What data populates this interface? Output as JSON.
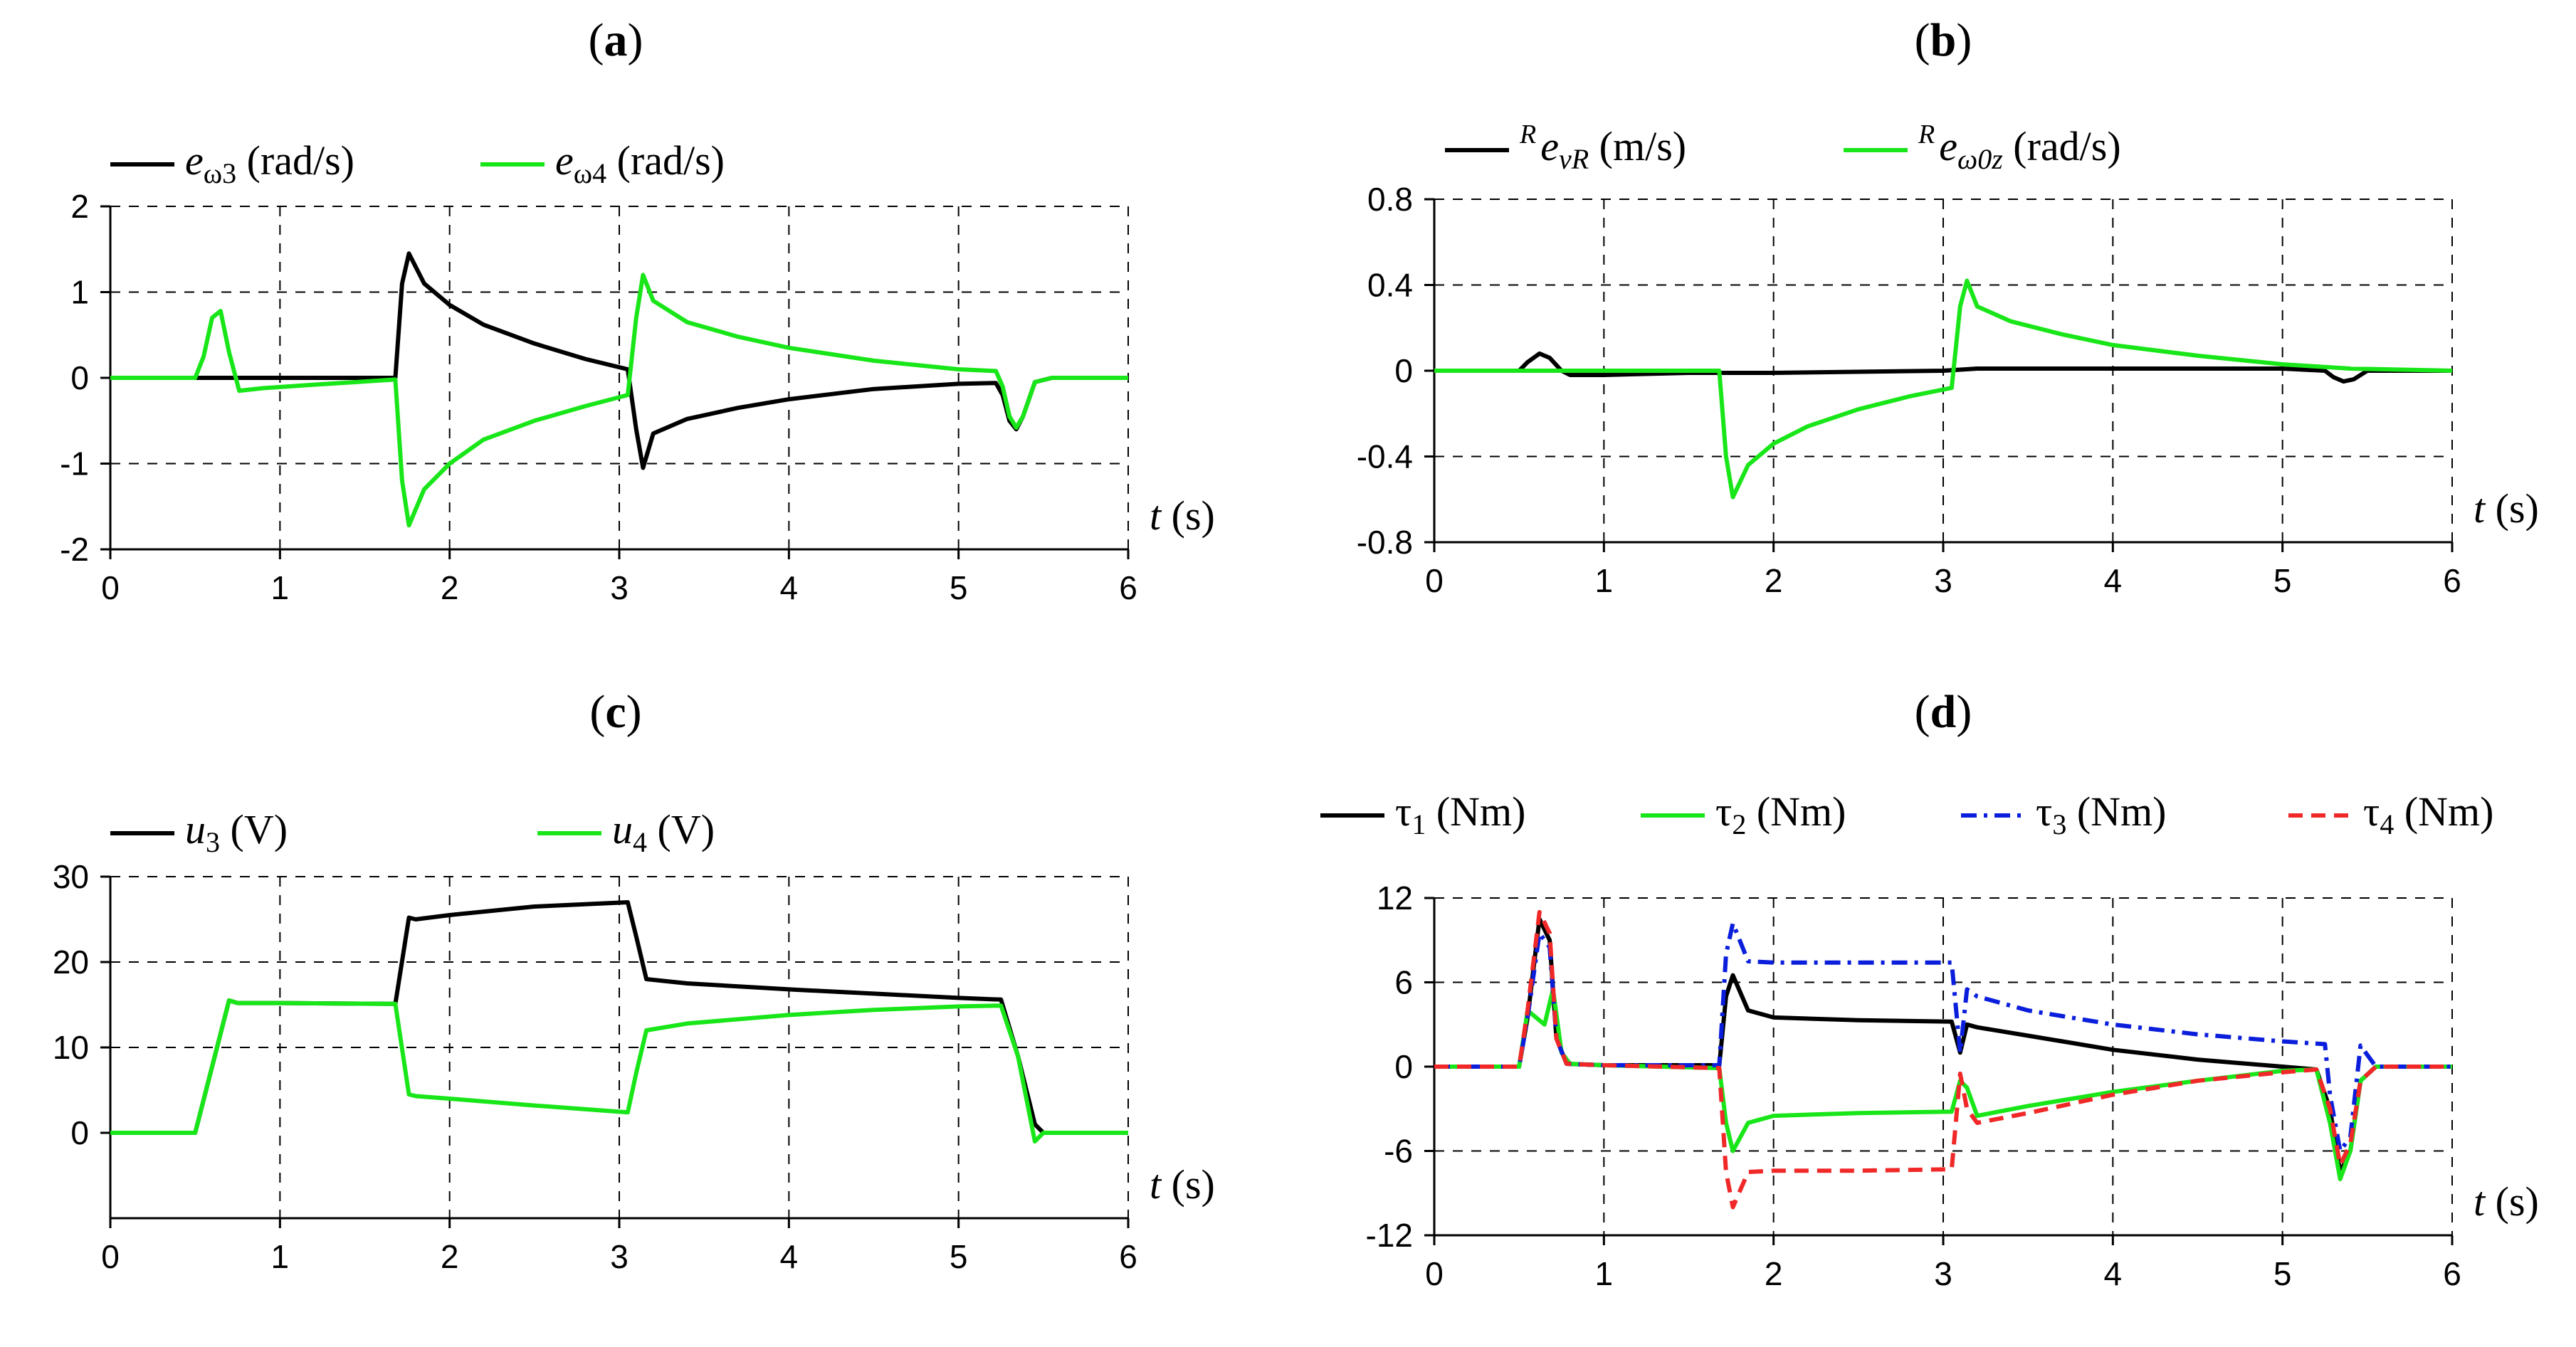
{
  "chart_data": [
    {
      "type": "line",
      "panel": "(a)",
      "title_letter": "a",
      "xlabel": "t",
      "xunit": "(s)",
      "xlim": [
        0,
        6
      ],
      "ylim": [
        -2,
        2
      ],
      "xticks": [
        0,
        1,
        2,
        3,
        4,
        5,
        6
      ],
      "yticks": [
        -2,
        -1,
        0,
        1,
        2
      ],
      "ytick_labels": [
        "-2",
        "-1",
        "0",
        "1",
        "2"
      ],
      "legend_position": "top",
      "series": [
        {
          "name": "e_ω3 (rad/s)",
          "sym": "e",
          "sub": "ω3",
          "sup": "",
          "unit": "(rad/s)",
          "color": "#000000",
          "dash": "solid",
          "x": [
            0,
            0.5,
            0.7,
            1.0,
            1.68,
            1.72,
            1.76,
            1.85,
            2.0,
            2.2,
            2.5,
            2.8,
            3.05,
            3.1,
            3.14,
            3.2,
            3.4,
            3.7,
            4.0,
            4.5,
            5.0,
            5.22,
            5.26,
            5.3,
            5.34,
            5.38,
            5.45,
            5.55,
            6.0
          ],
          "y": [
            0,
            0,
            0,
            0,
            0,
            1.1,
            1.45,
            1.1,
            0.85,
            0.62,
            0.4,
            0.22,
            0.1,
            -0.6,
            -1.05,
            -0.65,
            -0.48,
            -0.35,
            -0.25,
            -0.13,
            -0.07,
            -0.06,
            -0.2,
            -0.5,
            -0.6,
            -0.45,
            -0.05,
            0,
            0
          ]
        },
        {
          "name": "e_ω4 (rad/s)",
          "sym": "e",
          "sub": "ω4",
          "sup": "",
          "unit": "(rad/s)",
          "color": "#19e619",
          "dash": "solid",
          "x": [
            0,
            0.5,
            0.55,
            0.6,
            0.65,
            0.7,
            0.76,
            0.9,
            1.2,
            1.68,
            1.72,
            1.76,
            1.85,
            2.0,
            2.2,
            2.5,
            2.8,
            3.05,
            3.1,
            3.14,
            3.2,
            3.4,
            3.7,
            4.0,
            4.5,
            5.0,
            5.22,
            5.26,
            5.3,
            5.34,
            5.38,
            5.45,
            5.55,
            6.0
          ],
          "y": [
            0,
            0,
            0.25,
            0.7,
            0.78,
            0.3,
            -0.15,
            -0.12,
            -0.08,
            -0.02,
            -1.2,
            -1.72,
            -1.3,
            -1.0,
            -0.72,
            -0.5,
            -0.33,
            -0.2,
            0.7,
            1.2,
            0.9,
            0.65,
            0.48,
            0.35,
            0.2,
            0.1,
            0.08,
            -0.1,
            -0.45,
            -0.58,
            -0.45,
            -0.05,
            0,
            0
          ]
        }
      ]
    },
    {
      "type": "line",
      "panel": "(b)",
      "title_letter": "b",
      "xlabel": "t",
      "xunit": "(s)",
      "xlim": [
        0,
        6
      ],
      "ylim": [
        -0.8,
        0.8
      ],
      "xticks": [
        0,
        1,
        2,
        3,
        4,
        5,
        6
      ],
      "yticks": [
        -0.8,
        -0.4,
        0,
        0.4,
        0.8
      ],
      "ytick_labels": [
        "-0.8",
        "-0.4",
        "0",
        "0.4",
        "0.8"
      ],
      "legend_position": "top",
      "series": [
        {
          "name": "R e_vR (m/s)",
          "sym": "e",
          "sub": "vR",
          "sup": "R",
          "unit": "(m/s)",
          "color": "#000000",
          "dash": "solid",
          "x": [
            0,
            0.5,
            0.55,
            0.62,
            0.68,
            0.75,
            0.8,
            1.0,
            1.5,
            2.0,
            3.0,
            3.2,
            4.0,
            5.0,
            5.25,
            5.3,
            5.36,
            5.42,
            5.5,
            6.0
          ],
          "y": [
            0,
            0,
            0.04,
            0.08,
            0.06,
            0.0,
            -0.02,
            -0.02,
            -0.01,
            -0.01,
            0.0,
            0.01,
            0.01,
            0.01,
            0.0,
            -0.03,
            -0.05,
            -0.04,
            0.0,
            0.0
          ]
        },
        {
          "name": "R e_ω0z (rad/s)",
          "sym": "e",
          "sub": "ω0z",
          "sup": "R",
          "unit": "(rad/s)",
          "color": "#19e619",
          "dash": "solid",
          "x": [
            0,
            1.0,
            1.68,
            1.72,
            1.76,
            1.85,
            2.0,
            2.2,
            2.5,
            2.8,
            3.05,
            3.1,
            3.14,
            3.2,
            3.4,
            3.7,
            4.0,
            4.5,
            5.0,
            5.4,
            6.0
          ],
          "y": [
            0,
            0,
            0,
            -0.4,
            -0.59,
            -0.44,
            -0.34,
            -0.26,
            -0.18,
            -0.12,
            -0.08,
            0.3,
            0.42,
            0.3,
            0.23,
            0.17,
            0.12,
            0.07,
            0.03,
            0.01,
            0
          ]
        }
      ]
    },
    {
      "type": "line",
      "panel": "(c)",
      "title_letter": "c",
      "xlabel": "t",
      "xunit": "(s)",
      "xlim": [
        0,
        6
      ],
      "ylim": [
        -10,
        30
      ],
      "xticks": [
        0,
        1,
        2,
        3,
        4,
        5,
        6
      ],
      "yticks": [
        0,
        10,
        20,
        30
      ],
      "ytick_labels": [
        "0",
        "10",
        "20",
        "30"
      ],
      "legend_position": "top",
      "series": [
        {
          "name": "u3 (V)",
          "sym": "u",
          "sub": "3",
          "sup": "",
          "unit": "(V)",
          "color": "#000000",
          "dash": "solid",
          "x": [
            0,
            0.5,
            0.7,
            0.75,
            1.0,
            1.68,
            1.76,
            1.8,
            2.0,
            2.5,
            3.05,
            3.1,
            3.16,
            3.4,
            4.0,
            4.5,
            5.0,
            5.25,
            5.35,
            5.45,
            5.5,
            6.0
          ],
          "y": [
            0,
            0,
            15.5,
            15.2,
            15.2,
            15.1,
            25.2,
            25.0,
            25.5,
            26.5,
            27.0,
            23.0,
            18.0,
            17.5,
            16.8,
            16.3,
            15.8,
            15.6,
            9.0,
            1.0,
            0,
            0
          ]
        },
        {
          "name": "u4 (V)",
          "sym": "u",
          "sub": "4",
          "sup": "",
          "unit": "(V)",
          "color": "#19e619",
          "dash": "solid",
          "x": [
            0,
            0.5,
            0.7,
            0.75,
            1.0,
            1.68,
            1.76,
            1.8,
            2.0,
            2.5,
            3.05,
            3.1,
            3.16,
            3.4,
            4.0,
            4.5,
            5.0,
            5.25,
            5.35,
            5.45,
            5.5,
            6.0
          ],
          "y": [
            0,
            0,
            15.5,
            15.2,
            15.2,
            15.1,
            4.5,
            4.3,
            4.0,
            3.2,
            2.4,
            7.0,
            12.0,
            12.8,
            13.8,
            14.4,
            14.8,
            14.9,
            9.0,
            -1.0,
            0,
            0
          ]
        }
      ]
    },
    {
      "type": "line",
      "panel": "(d)",
      "title_letter": "d",
      "xlabel": "t",
      "xunit": "(s)",
      "xlim": [
        0,
        6
      ],
      "ylim": [
        -12,
        12
      ],
      "xticks": [
        0,
        1,
        2,
        3,
        4,
        5,
        6
      ],
      "yticks": [
        -12,
        -6,
        0,
        6,
        12
      ],
      "ytick_labels": [
        "-12",
        "-6",
        "0",
        "6",
        "12"
      ],
      "legend_position": "top",
      "series": [
        {
          "name": "τ1 (Nm)",
          "sym": "τ",
          "sub": "1",
          "sup": "",
          "unit": "(Nm)",
          "color": "#000000",
          "dash": "solid",
          "x": [
            0,
            0.5,
            0.55,
            0.62,
            0.68,
            0.72,
            0.78,
            1.0,
            1.68,
            1.72,
            1.76,
            1.85,
            2.0,
            2.5,
            3.05,
            3.1,
            3.14,
            3.2,
            3.5,
            4.0,
            4.5,
            5.0,
            5.2,
            5.28,
            5.34,
            5.4,
            5.46,
            5.55,
            6.0
          ],
          "y": [
            0,
            0,
            3.5,
            10.5,
            9.0,
            2.0,
            0.2,
            0.1,
            0.1,
            5.0,
            6.5,
            4.0,
            3.5,
            3.3,
            3.2,
            1.0,
            3.0,
            2.8,
            2.2,
            1.2,
            0.5,
            0.0,
            -0.2,
            -3.0,
            -7.5,
            -6.0,
            -1.0,
            0,
            0
          ]
        },
        {
          "name": "τ2 (Nm)",
          "sym": "τ",
          "sub": "2",
          "sup": "",
          "unit": "(Nm)",
          "color": "#19e619",
          "dash": "solid",
          "x": [
            0,
            0.5,
            0.55,
            0.6,
            0.65,
            0.7,
            0.75,
            0.8,
            1.0,
            1.68,
            1.72,
            1.76,
            1.85,
            2.0,
            2.5,
            3.05,
            3.1,
            3.14,
            3.2,
            3.5,
            4.0,
            4.5,
            5.0,
            5.2,
            5.28,
            5.34,
            5.4,
            5.46,
            5.55,
            6.0
          ],
          "y": [
            0,
            0,
            4.0,
            3.5,
            3.0,
            5.5,
            1.0,
            0.2,
            0.1,
            -0.1,
            -4.0,
            -6.0,
            -4.0,
            -3.5,
            -3.3,
            -3.2,
            -1.0,
            -1.5,
            -3.5,
            -2.8,
            -1.8,
            -1.0,
            -0.3,
            -0.2,
            -4.0,
            -8.0,
            -6.0,
            -1.0,
            0,
            0
          ]
        },
        {
          "name": "τ3 (Nm)",
          "sym": "τ",
          "sub": "3",
          "sup": "",
          "unit": "(Nm)",
          "color": "#0a1edc",
          "dash": "dashdot",
          "x": [
            0,
            0.5,
            0.55,
            0.62,
            0.68,
            0.72,
            0.78,
            1.0,
            1.68,
            1.72,
            1.76,
            1.85,
            2.0,
            2.5,
            3.05,
            3.1,
            3.14,
            3.2,
            3.5,
            4.0,
            4.5,
            5.0,
            5.25,
            5.28,
            5.34,
            5.4,
            5.46,
            5.55,
            6.0
          ],
          "y": [
            0,
            0,
            3.5,
            9.5,
            8.5,
            2.0,
            0.2,
            0.1,
            0.1,
            8.0,
            10.2,
            7.5,
            7.4,
            7.4,
            7.4,
            1.0,
            5.5,
            5.0,
            4.0,
            3.0,
            2.3,
            1.8,
            1.6,
            -2.0,
            -6.0,
            -5.0,
            1.5,
            0,
            0
          ]
        },
        {
          "name": "τ4 (Nm)",
          "sym": "τ",
          "sub": "4",
          "sup": "",
          "unit": "(Nm)",
          "color": "#f02828",
          "dash": "dashed",
          "x": [
            0,
            0.5,
            0.55,
            0.62,
            0.68,
            0.72,
            0.78,
            1.0,
            1.68,
            1.72,
            1.76,
            1.85,
            2.0,
            2.5,
            3.05,
            3.1,
            3.14,
            3.2,
            3.5,
            4.0,
            4.5,
            5.0,
            5.2,
            5.28,
            5.34,
            5.4,
            5.46,
            5.55,
            6.0
          ],
          "y": [
            0,
            0,
            4.0,
            11.0,
            9.5,
            2.0,
            0.2,
            0.1,
            -0.1,
            -7.5,
            -10.0,
            -7.5,
            -7.4,
            -7.4,
            -7.3,
            -0.5,
            -3.0,
            -4.0,
            -3.3,
            -2.0,
            -1.0,
            -0.4,
            -0.2,
            -3.0,
            -7.0,
            -5.5,
            -1.0,
            0,
            0
          ]
        }
      ]
    }
  ]
}
